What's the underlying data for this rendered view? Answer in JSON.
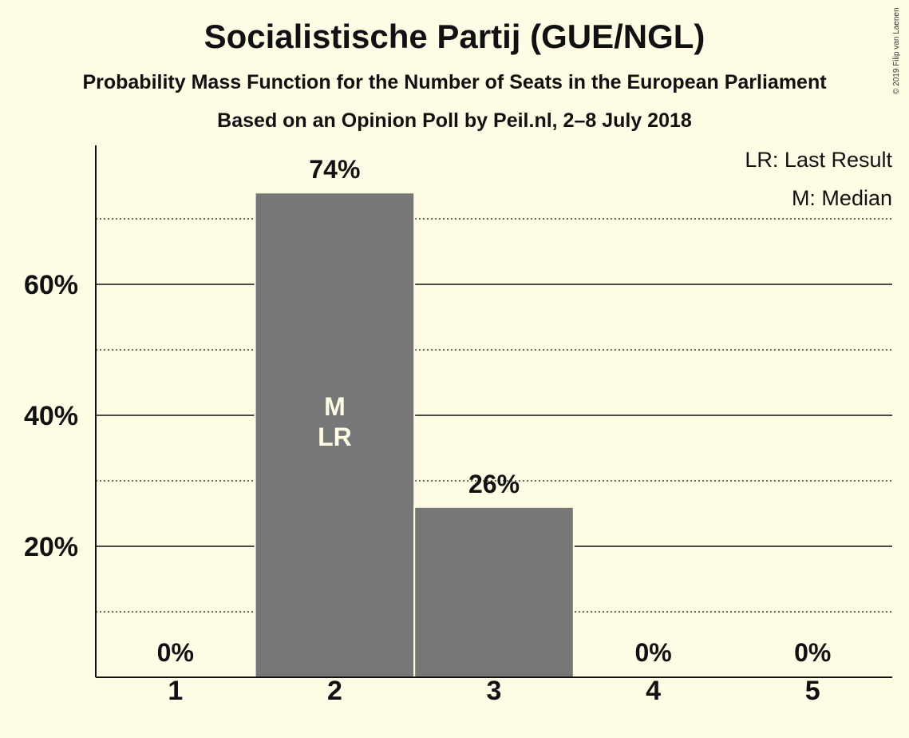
{
  "title": "Socialistische Partij (GUE/NGL)",
  "subtitle": "Probability Mass Function for the Number of Seats in the European Parliament",
  "subtitle2": "Based on an Opinion Poll by Peil.nl, 2–8 July 2018",
  "copyright": "© 2019 Filip van Laenen",
  "legend": [
    "LR: Last Result",
    "M: Median"
  ],
  "colors": {
    "bar": "#777777",
    "background": "#FFFCE6",
    "text": "#111111",
    "marker_text": "#FFFCE6"
  },
  "chart_data": {
    "type": "bar",
    "categories": [
      "1",
      "2",
      "3",
      "4",
      "5"
    ],
    "values": [
      0,
      74,
      26,
      0,
      0
    ],
    "data_labels": [
      "0%",
      "74%",
      "26%",
      "0%",
      "0%"
    ],
    "bar_markers": {
      "2": [
        "M",
        "LR"
      ]
    },
    "yticks": [
      20,
      40,
      60
    ],
    "ytick_labels": [
      "20%",
      "40%",
      "60%"
    ],
    "minor_gridlines": [
      10,
      30,
      50,
      70
    ],
    "ylim": [
      0,
      80
    ],
    "grid": true,
    "legend_position": "top-right"
  }
}
